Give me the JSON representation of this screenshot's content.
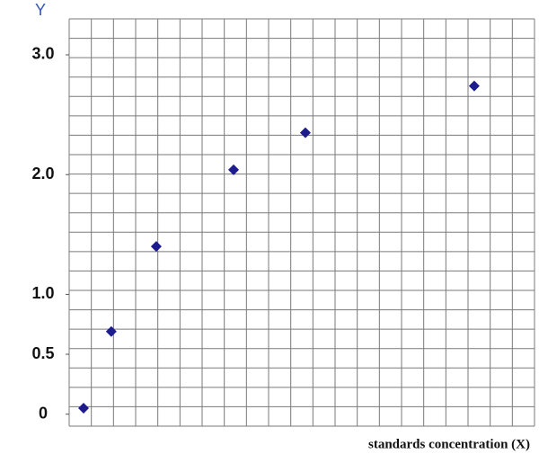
{
  "chart_data": {
    "type": "scatter",
    "y_label": "Y",
    "x_label": "standards concentration (X)",
    "x": [
      0.65,
      1.9,
      3.93,
      7.42,
      10.66,
      18.28
    ],
    "values": [
      0.05,
      0.69,
      1.4,
      2.04,
      2.35,
      2.74
    ],
    "color": "#1c1c8f",
    "xlim": [
      0,
      21
    ],
    "ylim": [
      -0.1,
      3.3
    ],
    "yticks": [
      0,
      0.5,
      {
        "value": 1,
        "label": "1.0"
      },
      {
        "value": 2,
        "label": "2.0"
      },
      {
        "value": 3,
        "label": "3.0"
      }
    ],
    "grid": true
  }
}
